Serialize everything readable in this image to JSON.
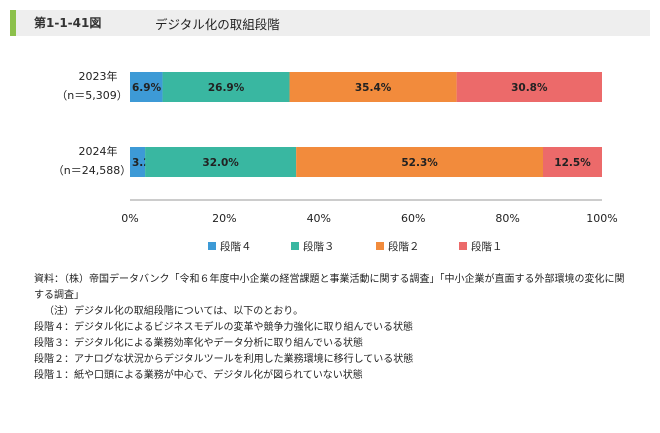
{
  "header": {
    "figure_no": "第1-1-41図",
    "title": "デジタル化の取組段階"
  },
  "chart_data": {
    "type": "bar",
    "orientation": "horizontal-stacked-100",
    "categories": [
      {
        "year": "2023年",
        "n": "（n＝5,309）"
      },
      {
        "year": "2024年",
        "n": "（n＝24,588）"
      }
    ],
    "series": [
      {
        "name": "段階４",
        "color": "#3d9ad6",
        "values": [
          6.9,
          3.2
        ],
        "labels": [
          "6.9%",
          "3.2%"
        ]
      },
      {
        "name": "段階３",
        "color": "#39b7a1",
        "values": [
          26.9,
          32.0
        ],
        "labels": [
          "26.9%",
          "32.0%"
        ]
      },
      {
        "name": "段階２",
        "color": "#f28b3c",
        "values": [
          35.4,
          52.3
        ],
        "labels": [
          "35.4%",
          "52.3%"
        ]
      },
      {
        "name": "段階１",
        "color": "#ec6a6a",
        "values": [
          30.8,
          12.5
        ],
        "labels": [
          "30.8%",
          "12.5%"
        ]
      }
    ],
    "xticks": [
      "0%",
      "20%",
      "40%",
      "60%",
      "80%",
      "100%"
    ],
    "xlim": [
      0,
      100
    ],
    "legend": "bottom"
  },
  "notes": {
    "source": "資料：（株）帝国データバンク「令和６年度中小企業の経営課題と事業活動に関する調査」「中小企業が直面する外部環境の変化に関する調査」",
    "note_intro": "（注）デジタル化の取組段階については、以下のとおり。",
    "stages": [
      "段階４：デジタル化によるビジネスモデルの変革や競争力強化に取り組んでいる状態",
      "段階３：デジタル化による業務効率化やデータ分析に取り組んでいる状態",
      "段階２：アナログな状況からデジタルツールを利用した業務環境に移行している状態",
      "段階１：紙や口頭による業務が中心で、デジタル化が図られていない状態"
    ]
  }
}
